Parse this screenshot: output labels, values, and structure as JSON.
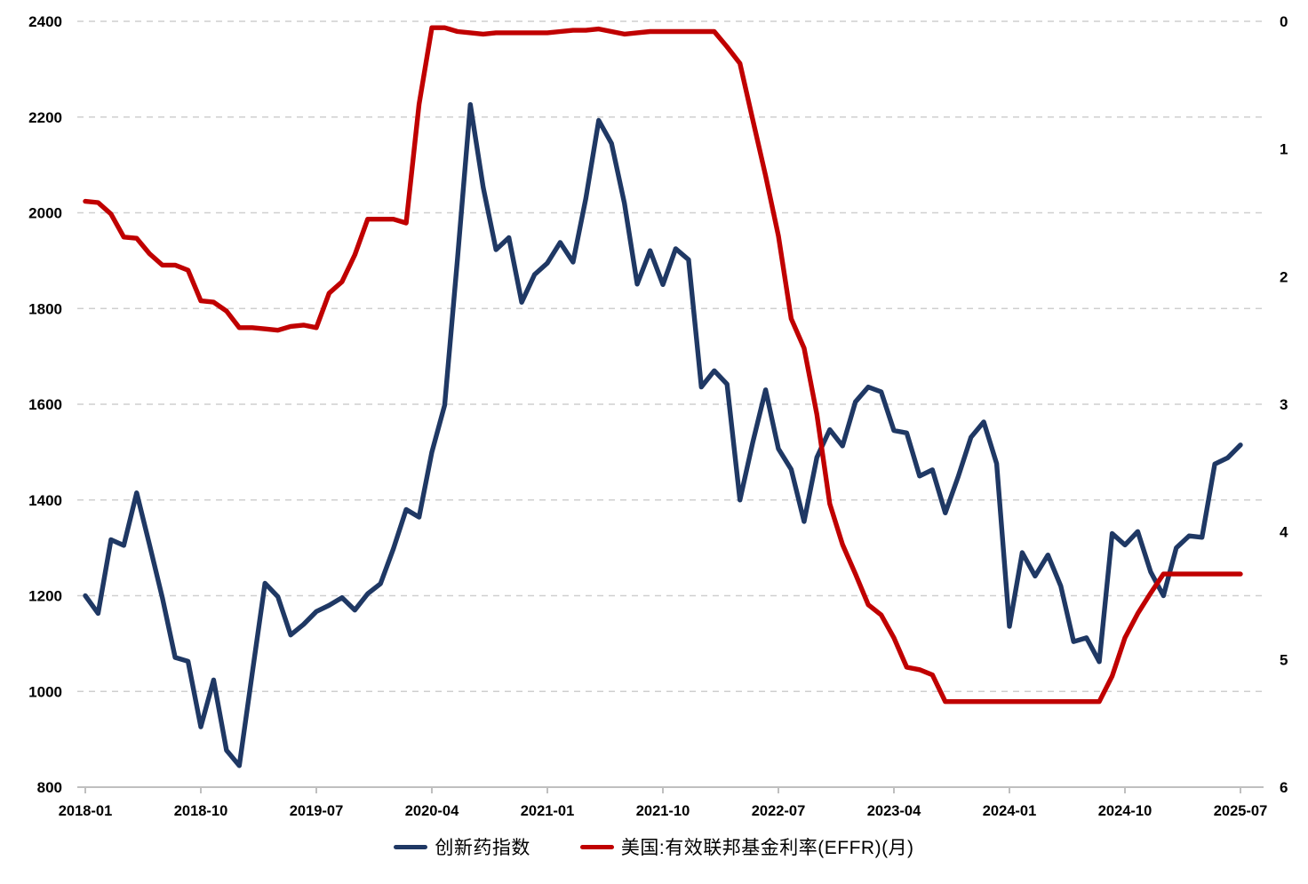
{
  "chart_data": {
    "type": "line",
    "title": "",
    "x_start": "2018-01",
    "x_end": "2025-07",
    "x_freq": "monthly",
    "x_tick_labels": [
      "2018-01",
      "2018-10",
      "2019-07",
      "2020-04",
      "2021-01",
      "2021-10",
      "2022-07",
      "2023-04",
      "2024-01",
      "2024-10",
      "2025-07"
    ],
    "x_tick_interval_months": 9,
    "left_axis": {
      "ticks": [
        2400,
        2200,
        2000,
        1800,
        1600,
        1400,
        1200,
        1000,
        800
      ],
      "min": 800,
      "max": 2400
    },
    "right_axis": {
      "ticks": [
        0,
        1,
        2,
        3,
        4,
        5,
        6
      ],
      "min": 0,
      "max": 6,
      "inverted": true
    },
    "grid": "horizontal-dashed",
    "legend_position": "bottom-center",
    "series": [
      {
        "name": "创新药指数",
        "axis": "left",
        "color": "#1F3864",
        "values": [
          1200,
          1163,
          1317,
          1305,
          1415,
          1307,
          1196,
          1071,
          1063,
          926,
          1024,
          877,
          845,
          1037,
          1226,
          1198,
          1118,
          1140,
          1167,
          1180,
          1196,
          1170,
          1204,
          1225,
          1298,
          1380,
          1364,
          1500,
          1598,
          1905,
          2226,
          2053,
          1923,
          1948,
          1813,
          1871,
          1895,
          1938,
          1897,
          2030,
          2193,
          2145,
          2020,
          1851,
          1921,
          1850,
          1925,
          1902,
          1636,
          1670,
          1642,
          1400,
          1520,
          1630,
          1507,
          1464,
          1355,
          1489,
          1547,
          1513,
          1605,
          1636,
          1626,
          1545,
          1540,
          1450,
          1463,
          1373,
          1448,
          1531,
          1563,
          1476,
          1136,
          1290,
          1241,
          1285,
          1220,
          1104,
          1112,
          1062,
          1330,
          1306,
          1334,
          1250,
          1200,
          1300,
          1325,
          1322,
          1475,
          1488,
          1515
        ]
      },
      {
        "name": "美国:有效联邦基金利率(EFFR)(月)",
        "axis": "right",
        "color": "#C00000",
        "values": [
          1.41,
          1.42,
          1.51,
          1.69,
          1.7,
          1.82,
          1.91,
          1.91,
          1.95,
          2.19,
          2.2,
          2.27,
          2.4,
          2.4,
          2.41,
          2.42,
          2.39,
          2.38,
          2.4,
          2.13,
          2.04,
          1.83,
          1.55,
          1.55,
          1.55,
          1.58,
          0.65,
          0.05,
          0.05,
          0.08,
          0.09,
          0.1,
          0.09,
          0.09,
          0.09,
          0.09,
          0.09,
          0.08,
          0.07,
          0.07,
          0.06,
          0.08,
          0.1,
          0.09,
          0.08,
          0.08,
          0.08,
          0.08,
          0.08,
          0.08,
          0.2,
          0.33,
          0.77,
          1.21,
          1.68,
          2.33,
          2.56,
          3.08,
          3.78,
          4.1,
          4.33,
          4.57,
          4.65,
          4.83,
          5.06,
          5.08,
          5.12,
          5.33,
          5.33,
          5.33,
          5.33,
          5.33,
          5.33,
          5.33,
          5.33,
          5.33,
          5.33,
          5.33,
          5.33,
          5.33,
          5.13,
          4.83,
          4.64,
          4.48,
          4.33,
          4.33,
          4.33,
          4.33,
          4.33,
          4.33,
          4.33
        ]
      }
    ],
    "colors": {
      "grid": "#CFCFCF",
      "axis_line": "#BFBFBF",
      "background": "#FFFFFF",
      "text": "#000000"
    }
  }
}
